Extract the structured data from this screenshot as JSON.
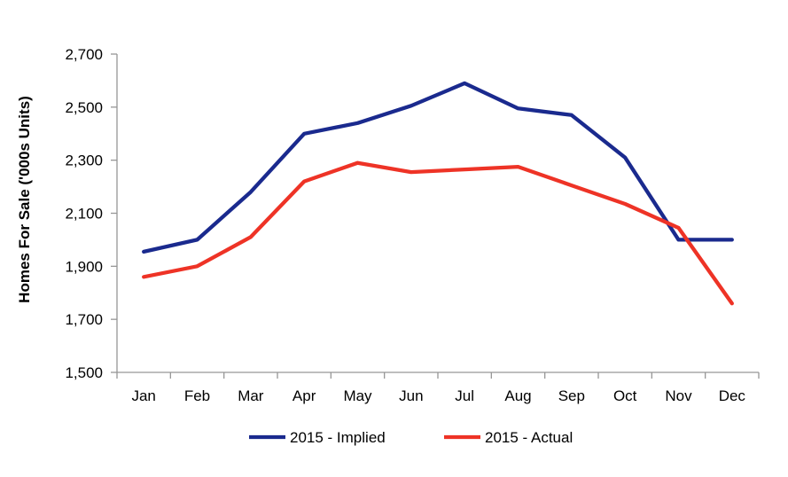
{
  "chart_data": {
    "type": "line",
    "title": "",
    "xlabel": "",
    "ylabel": "Homes For Sale ('000s Units)",
    "categories": [
      "Jan",
      "Feb",
      "Mar",
      "Apr",
      "May",
      "Jun",
      "Jul",
      "Aug",
      "Sep",
      "Oct",
      "Nov",
      "Dec"
    ],
    "series": [
      {
        "name": "2015 - Implied",
        "color": "#1a2a8e",
        "values": [
          1955,
          2000,
          2180,
          2400,
          2440,
          2505,
          2590,
          2495,
          2470,
          2310,
          2000,
          2000
        ]
      },
      {
        "name": "2015 - Actual",
        "color": "#ee3326",
        "values": [
          1860,
          1900,
          2010,
          2220,
          2290,
          2255,
          2265,
          2275,
          2205,
          2135,
          2045,
          1760
        ]
      }
    ],
    "ylim": [
      1500,
      2700
    ],
    "ytick_interval": 200,
    "ytick_labels": [
      "1,500",
      "1,700",
      "1,900",
      "2,100",
      "2,300",
      "2,500",
      "2,700"
    ],
    "grid": false,
    "legend_position": "bottom"
  },
  "colors": {
    "axis": "#969696",
    "text": "#000000",
    "background": "#ffffff"
  }
}
